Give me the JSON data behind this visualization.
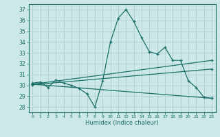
{
  "xlabel": "Humidex (Indice chaleur)",
  "background_color": "#cce8e8",
  "grid_color": "#b0cccc",
  "line_color": "#1a7068",
  "xlim": [
    -0.5,
    23.5
  ],
  "ylim": [
    27.5,
    37.5
  ],
  "xticks": [
    0,
    1,
    2,
    3,
    4,
    5,
    6,
    7,
    8,
    9,
    10,
    11,
    12,
    13,
    14,
    15,
    16,
    17,
    18,
    19,
    20,
    21,
    22,
    23
  ],
  "yticks": [
    28,
    29,
    30,
    31,
    32,
    33,
    34,
    35,
    36,
    37
  ],
  "series": [
    {
      "x": [
        0,
        1,
        2,
        3,
        4,
        5,
        6,
        7,
        8,
        9,
        10,
        11,
        12,
        13,
        14,
        15,
        16,
        17,
        18,
        19,
        20,
        21,
        22,
        23
      ],
      "y": [
        30.2,
        30.3,
        29.8,
        30.5,
        30.2,
        30.0,
        29.7,
        29.2,
        28.0,
        30.4,
        34.0,
        36.2,
        37.0,
        35.9,
        34.4,
        33.1,
        32.9,
        33.5,
        32.3,
        32.3,
        30.4,
        29.8,
        28.9,
        28.8
      ]
    },
    {
      "x": [
        0,
        23
      ],
      "y": [
        30.1,
        32.3
      ]
    },
    {
      "x": [
        0,
        23
      ],
      "y": [
        30.05,
        31.5
      ]
    },
    {
      "x": [
        0,
        23
      ],
      "y": [
        30.1,
        28.8
      ]
    }
  ]
}
